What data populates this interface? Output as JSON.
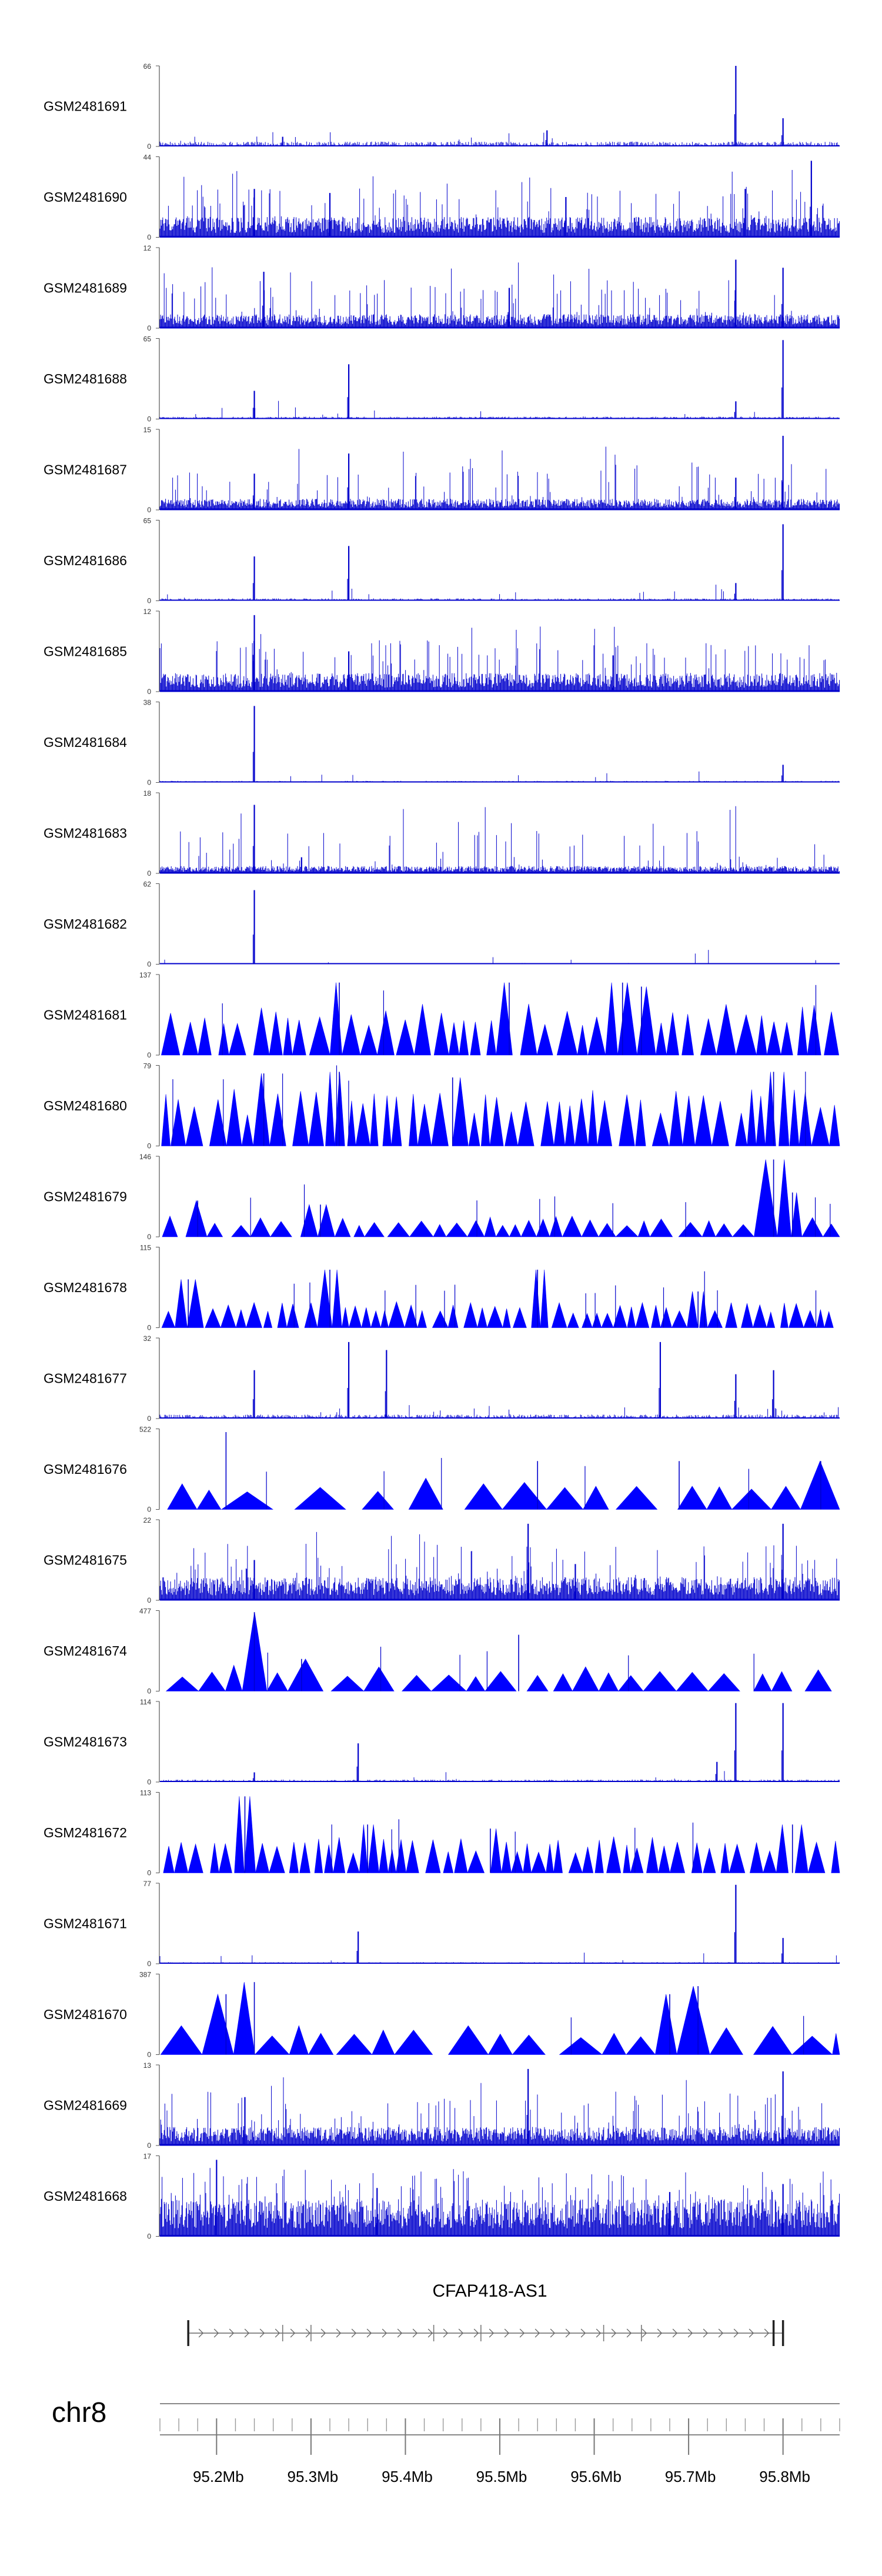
{
  "chart_data": {
    "type": "area",
    "title": "",
    "xlabel": "",
    "ylabel": "",
    "chromosome": "chr8",
    "xlim": [
      95.14,
      95.86
    ],
    "x_ticks": [
      {
        "value": 95.2,
        "label": "95.2Mb"
      },
      {
        "value": 95.3,
        "label": "95.3Mb"
      },
      {
        "value": 95.4,
        "label": "95.4Mb"
      },
      {
        "value": 95.5,
        "label": "95.5Mb"
      },
      {
        "value": 95.6,
        "label": "95.6Mb"
      },
      {
        "value": 95.7,
        "label": "95.7Mb"
      },
      {
        "value": 95.8,
        "label": "95.8Mb"
      }
    ],
    "minor_tick_step": 0.02,
    "series_color": "#0000cc",
    "series_fill_color": "#0000ff",
    "tracks": [
      {
        "name": "GSM2481691",
        "ymax": 66,
        "style": "spiky",
        "base": 0.06,
        "density": 0.35,
        "peaks": [
          [
            95.27,
            0.12
          ],
          [
            95.55,
            0.2
          ],
          [
            95.75,
            1.0
          ],
          [
            95.8,
            0.35
          ]
        ]
      },
      {
        "name": "GSM2481690",
        "ymax": 44,
        "style": "dense",
        "base": 0.22,
        "density": 0.8,
        "peaks": [
          [
            95.24,
            0.6
          ],
          [
            95.32,
            0.55
          ],
          [
            95.57,
            0.5
          ],
          [
            95.83,
            0.95
          ],
          [
            95.76,
            0.6
          ]
        ]
      },
      {
        "name": "GSM2481689",
        "ymax": 12,
        "style": "dense",
        "base": 0.15,
        "density": 0.7,
        "peaks": [
          [
            95.25,
            0.7
          ],
          [
            95.75,
            0.85
          ],
          [
            95.8,
            0.75
          ],
          [
            95.51,
            0.5
          ]
        ]
      },
      {
        "name": "GSM2481688",
        "ymax": 65,
        "style": "spiky",
        "base": 0.03,
        "density": 0.3,
        "peaks": [
          [
            95.24,
            0.35
          ],
          [
            95.34,
            0.68
          ],
          [
            95.75,
            0.22
          ],
          [
            95.8,
            0.98
          ]
        ]
      },
      {
        "name": "GSM2481687",
        "ymax": 15,
        "style": "dense",
        "base": 0.12,
        "density": 0.65,
        "peaks": [
          [
            95.24,
            0.45
          ],
          [
            95.34,
            0.7
          ],
          [
            95.8,
            0.92
          ],
          [
            95.75,
            0.4
          ]
        ]
      },
      {
        "name": "GSM2481686",
        "ymax": 65,
        "style": "spiky",
        "base": 0.03,
        "density": 0.3,
        "peaks": [
          [
            95.24,
            0.55
          ],
          [
            95.34,
            0.68
          ],
          [
            95.75,
            0.22
          ],
          [
            95.8,
            0.95
          ]
        ]
      },
      {
        "name": "GSM2481685",
        "ymax": 12,
        "style": "dense",
        "base": 0.2,
        "density": 0.8,
        "peaks": [
          [
            95.24,
            0.95
          ],
          [
            95.34,
            0.5
          ],
          [
            95.62,
            0.45
          ]
        ]
      },
      {
        "name": "GSM2481684",
        "ymax": 38,
        "style": "spiky",
        "base": 0.02,
        "density": 0.25,
        "peaks": [
          [
            95.24,
            0.95
          ],
          [
            95.8,
            0.22
          ]
        ]
      },
      {
        "name": "GSM2481683",
        "ymax": 18,
        "style": "dense",
        "base": 0.08,
        "density": 0.55,
        "peaks": [
          [
            95.24,
            0.85
          ],
          [
            95.29,
            0.2
          ]
        ]
      },
      {
        "name": "GSM2481682",
        "ymax": 62,
        "style": "spiky",
        "base": 0.015,
        "density": 0.2,
        "peaks": [
          [
            95.24,
            0.92
          ]
        ]
      },
      {
        "name": "GSM2481681",
        "ymax": 137,
        "style": "triangles",
        "base": 0.5,
        "nTri": 46,
        "peaks": [
          [
            95.33,
            0.9
          ],
          [
            95.51,
            0.9
          ],
          [
            95.63,
            0.9
          ],
          [
            95.65,
            0.85
          ]
        ]
      },
      {
        "name": "GSM2481680",
        "ymax": 79,
        "style": "triangles",
        "base": 0.55,
        "nTri": 52,
        "peaks": [
          [
            95.25,
            0.9
          ],
          [
            95.33,
            0.92
          ],
          [
            95.45,
            0.85
          ],
          [
            95.79,
            0.92
          ]
        ]
      },
      {
        "name": "GSM2481679",
        "ymax": 146,
        "style": "triangles",
        "base": 0.2,
        "nTri": 40,
        "peaks": [
          [
            95.18,
            0.45
          ],
          [
            95.31,
            0.4
          ],
          [
            95.79,
            0.96
          ],
          [
            95.81,
            0.55
          ]
        ]
      },
      {
        "name": "GSM2481678",
        "ymax": 115,
        "style": "triangles",
        "base": 0.25,
        "nTri": 58,
        "peaks": [
          [
            95.17,
            0.6
          ],
          [
            95.32,
            0.72
          ],
          [
            95.54,
            0.72
          ],
          [
            95.71,
            0.45
          ]
        ]
      },
      {
        "name": "GSM2481677",
        "ymax": 32,
        "style": "spiky",
        "base": 0.05,
        "density": 0.45,
        "peaks": [
          [
            95.24,
            0.6
          ],
          [
            95.34,
            0.95
          ],
          [
            95.38,
            0.85
          ],
          [
            95.67,
            0.95
          ],
          [
            95.75,
            0.55
          ],
          [
            95.79,
            0.6
          ]
        ]
      },
      {
        "name": "GSM2481676",
        "ymax": 522,
        "style": "triangles",
        "base": 0.3,
        "nTri": 18,
        "peaks": [
          [
            95.21,
            0.96
          ],
          [
            95.54,
            0.6
          ],
          [
            95.69,
            0.6
          ],
          [
            95.84,
            0.6
          ]
        ]
      },
      {
        "name": "GSM2481675",
        "ymax": 22,
        "style": "dense",
        "base": 0.25,
        "density": 0.75,
        "peaks": [
          [
            95.24,
            0.5
          ],
          [
            95.53,
            0.95
          ],
          [
            95.8,
            0.95
          ],
          [
            95.58,
            0.45
          ]
        ]
      },
      {
        "name": "GSM2481674",
        "ymax": 477,
        "style": "triangles",
        "base": 0.25,
        "nTri": 26,
        "peaks": [
          [
            95.24,
            0.98
          ],
          [
            95.52,
            0.7
          ],
          [
            95.29,
            0.4
          ]
        ]
      },
      {
        "name": "GSM2481673",
        "ymax": 114,
        "style": "spiky",
        "base": 0.03,
        "density": 0.3,
        "peaks": [
          [
            95.24,
            0.12
          ],
          [
            95.35,
            0.48
          ],
          [
            95.75,
            0.98
          ],
          [
            95.8,
            0.98
          ],
          [
            95.73,
            0.25
          ]
        ]
      },
      {
        "name": "GSM2481672",
        "ymax": 113,
        "style": "triangles",
        "base": 0.35,
        "nTri": 56,
        "peaks": [
          [
            95.23,
            0.95
          ],
          [
            95.36,
            0.6
          ],
          [
            95.49,
            0.55
          ],
          [
            95.81,
            0.6
          ]
        ]
      },
      {
        "name": "GSM2481671",
        "ymax": 77,
        "style": "spiky",
        "base": 0.02,
        "density": 0.25,
        "peaks": [
          [
            95.35,
            0.4
          ],
          [
            95.75,
            0.98
          ],
          [
            95.8,
            0.32
          ]
        ]
      },
      {
        "name": "GSM2481670",
        "ymax": 387,
        "style": "triangles",
        "base": 0.3,
        "nTri": 22,
        "peaks": [
          [
            95.21,
            0.75
          ],
          [
            95.24,
            0.9
          ],
          [
            95.68,
            0.75
          ],
          [
            95.71,
            0.85
          ]
        ]
      },
      {
        "name": "GSM2481669",
        "ymax": 13,
        "style": "dense",
        "base": 0.2,
        "density": 0.75,
        "peaks": [
          [
            95.23,
            0.6
          ],
          [
            95.53,
            0.95
          ],
          [
            95.8,
            0.92
          ]
        ]
      },
      {
        "name": "GSM2481668",
        "ymax": 17,
        "style": "dense",
        "base": 0.4,
        "density": 0.85,
        "peaks": [
          [
            95.2,
            0.95
          ],
          [
            95.37,
            0.6
          ],
          [
            95.68,
            0.55
          ],
          [
            95.8,
            0.65
          ]
        ]
      }
    ],
    "gene": {
      "name": "CFAP418-AS1",
      "start": 95.17,
      "end": 95.8,
      "strand": "+",
      "exons": [
        95.17,
        95.27,
        95.3,
        95.43,
        95.48,
        95.61,
        95.65,
        95.79,
        95.8
      ]
    }
  }
}
